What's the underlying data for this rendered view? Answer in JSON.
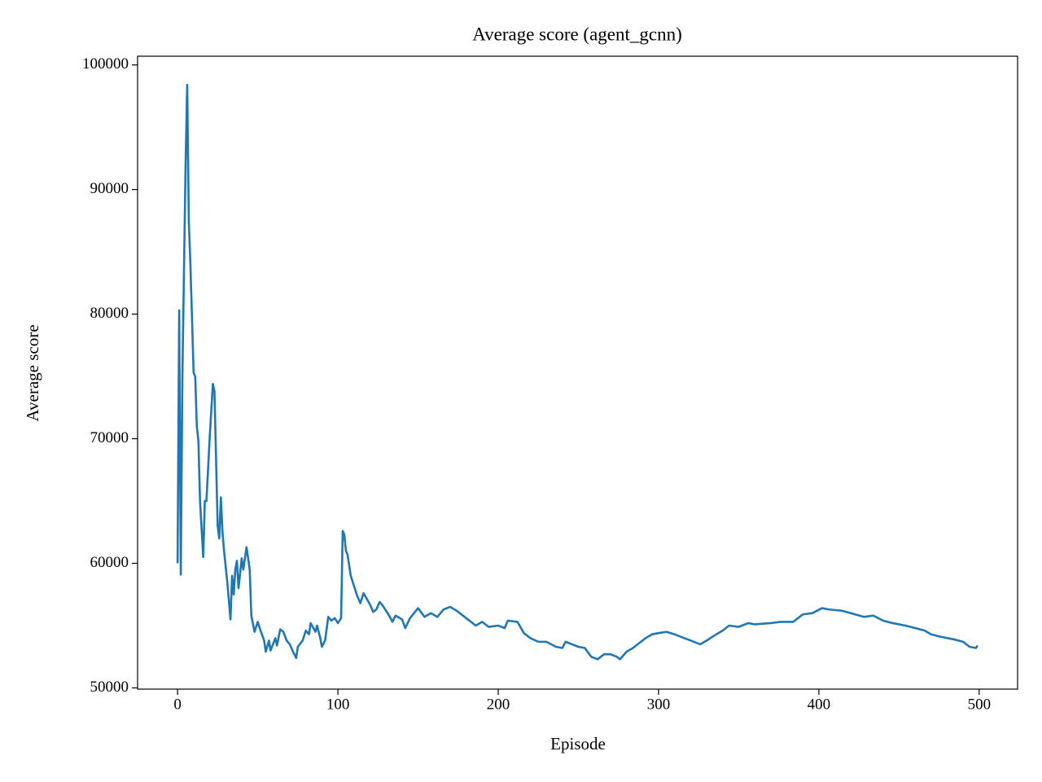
{
  "chart_data": {
    "type": "line",
    "title": "Average score (agent_gcnn)",
    "x_label": "Episode",
    "y_label": "Average score",
    "xlim": [
      -24.95,
      523.95
    ],
    "ylim": [
      49900,
      100700
    ],
    "xticks": [
      0,
      100,
      200,
      300,
      400,
      500
    ],
    "yticks": [
      50000,
      60000,
      70000,
      80000,
      90000,
      100000
    ],
    "series": [
      {
        "name": "agent_gcnn",
        "color": "#1f77b4",
        "x": [
          0,
          1,
          2,
          3,
          5,
          6,
          7,
          8,
          10,
          11,
          12,
          13,
          14,
          16,
          17,
          18,
          20,
          22,
          23,
          25,
          26,
          27,
          28,
          29,
          31,
          33,
          34,
          35,
          36,
          37,
          38,
          40,
          41,
          43,
          45,
          46,
          48,
          50,
          52,
          54,
          55,
          57,
          58,
          61,
          62,
          64,
          66,
          68,
          70,
          72,
          74,
          75,
          78,
          80,
          82,
          83,
          86,
          87,
          89,
          90,
          92,
          94,
          96,
          98,
          100,
          102,
          103,
          104,
          105,
          106,
          108,
          112,
          114,
          116,
          120,
          122,
          124,
          126,
          128,
          132,
          134,
          136,
          140,
          142,
          145,
          150,
          154,
          158,
          162,
          166,
          170,
          174,
          180,
          186,
          190,
          194,
          200,
          204,
          206,
          212,
          216,
          220,
          225,
          230,
          236,
          240,
          242,
          246,
          250,
          254,
          258,
          262,
          266,
          270,
          274,
          276,
          280,
          284,
          288,
          292,
          296,
          300,
          305,
          310,
          316,
          320,
          326,
          330,
          336,
          340,
          344,
          350,
          356,
          360,
          370,
          376,
          384,
          390,
          396,
          402,
          406,
          414,
          420,
          428,
          434,
          440,
          446,
          454,
          460,
          466,
          470,
          476,
          484,
          490,
          494,
          498,
          499
        ],
        "values": [
          60000,
          80300,
          59100,
          75000,
          92000,
          98400,
          87500,
          84000,
          75300,
          75000,
          71000,
          69800,
          65000,
          60500,
          65000,
          65000,
          70000,
          74400,
          73800,
          63000,
          62000,
          65300,
          62500,
          61000,
          58500,
          55500,
          59000,
          57500,
          59500,
          60200,
          58000,
          60400,
          59500,
          61300,
          59500,
          55800,
          54500,
          55300,
          54500,
          53800,
          52900,
          53800,
          53000,
          54000,
          53400,
          54700,
          54500,
          53800,
          53500,
          52900,
          52400,
          53300,
          53800,
          54600,
          54300,
          55200,
          54500,
          55000,
          54000,
          53300,
          53800,
          55700,
          55400,
          55600,
          55200,
          55600,
          62600,
          62300,
          61000,
          60700,
          59000,
          57400,
          56800,
          57600,
          56700,
          56100,
          56300,
          56900,
          56600,
          55800,
          55300,
          55800,
          55500,
          54800,
          55600,
          56400,
          55700,
          56000,
          55700,
          56300,
          56500,
          56200,
          55600,
          55000,
          55300,
          54900,
          55000,
          54800,
          55400,
          55300,
          54400,
          54000,
          53700,
          53700,
          53300,
          53200,
          53700,
          53500,
          53300,
          53200,
          52500,
          52300,
          52700,
          52700,
          52500,
          52300,
          52900,
          53200,
          53600,
          54000,
          54300,
          54400,
          54500,
          54300,
          54000,
          53800,
          53500,
          53800,
          54300,
          54600,
          55000,
          54900,
          55200,
          55100,
          55200,
          55300,
          55300,
          55900,
          56000,
          56400,
          56300,
          56200,
          56000,
          55700,
          55800,
          55400,
          55200,
          55000,
          54800,
          54600,
          54300,
          54100,
          53900,
          53700,
          53300,
          53200,
          53400
        ]
      }
    ]
  }
}
